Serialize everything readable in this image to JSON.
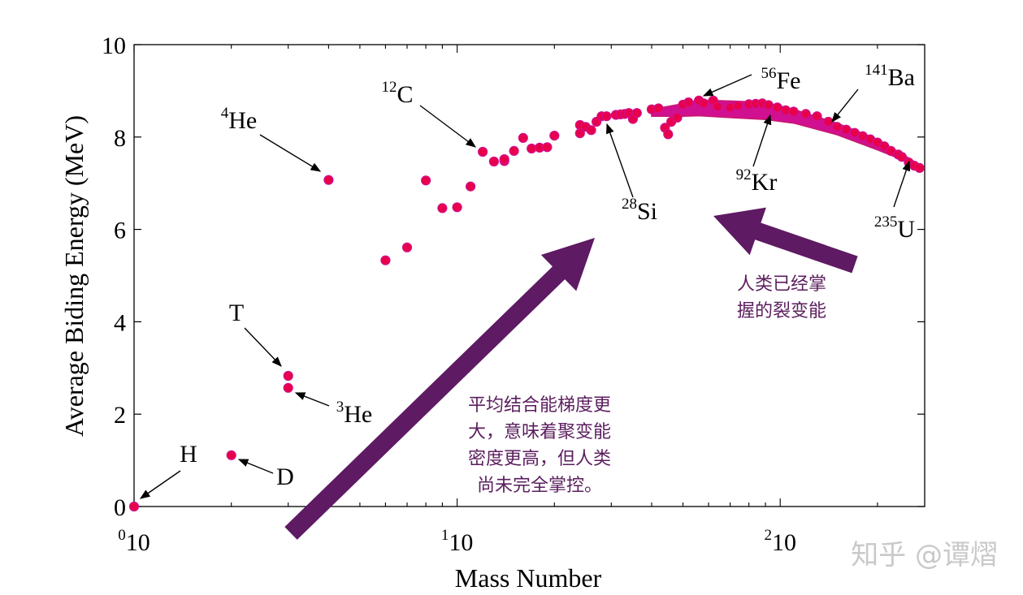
{
  "chart_data": {
    "type": "scatter",
    "xlabel": "Mass Number",
    "ylabel": "Average Biding Energy (MeV)",
    "xscale": "log",
    "xlim": [
      1,
      280
    ],
    "ylim": [
      0,
      10
    ],
    "grid": false,
    "x_ticks": [
      {
        "value": 1,
        "base": "10",
        "exp": "0"
      },
      {
        "value": 10,
        "base": "10",
        "exp": "1"
      },
      {
        "value": 100,
        "base": "10",
        "exp": "2"
      }
    ],
    "y_ticks": [
      "0",
      "2",
      "4",
      "6",
      "8",
      "10"
    ],
    "marker_color": "#e8004a",
    "marker_edge": "#d01090",
    "points": [
      {
        "x": 1,
        "y": 0
      },
      {
        "x": 2,
        "y": 1.11
      },
      {
        "x": 3,
        "y": 2.83
      },
      {
        "x": 3,
        "y": 2.57
      },
      {
        "x": 4,
        "y": 7.07
      },
      {
        "x": 6,
        "y": 5.33
      },
      {
        "x": 7,
        "y": 5.61
      },
      {
        "x": 8,
        "y": 7.06
      },
      {
        "x": 9,
        "y": 6.46
      },
      {
        "x": 10,
        "y": 6.48
      },
      {
        "x": 11,
        "y": 6.93
      },
      {
        "x": 12,
        "y": 7.68
      },
      {
        "x": 13,
        "y": 7.47
      },
      {
        "x": 14,
        "y": 7.48
      },
      {
        "x": 14,
        "y": 7.52
      },
      {
        "x": 15,
        "y": 7.7
      },
      {
        "x": 16,
        "y": 7.98
      },
      {
        "x": 17,
        "y": 7.75
      },
      {
        "x": 18,
        "y": 7.77
      },
      {
        "x": 19,
        "y": 7.78
      },
      {
        "x": 20,
        "y": 8.03
      },
      {
        "x": 24,
        "y": 8.26
      },
      {
        "x": 24,
        "y": 8.08
      },
      {
        "x": 25,
        "y": 8.22
      },
      {
        "x": 26,
        "y": 8.15
      },
      {
        "x": 27,
        "y": 8.33
      },
      {
        "x": 28,
        "y": 8.45
      },
      {
        "x": 29,
        "y": 8.45
      },
      {
        "x": 31,
        "y": 8.48
      },
      {
        "x": 32,
        "y": 8.49
      },
      {
        "x": 33,
        "y": 8.5
      },
      {
        "x": 34,
        "y": 8.52
      },
      {
        "x": 35,
        "y": 8.39
      },
      {
        "x": 36,
        "y": 8.52
      },
      {
        "x": 40,
        "y": 8.6
      },
      {
        "x": 42,
        "y": 8.62
      },
      {
        "x": 44,
        "y": 8.2
      },
      {
        "x": 45,
        "y": 8.06
      },
      {
        "x": 46,
        "y": 8.33
      },
      {
        "x": 48,
        "y": 8.42
      },
      {
        "x": 50,
        "y": 8.7
      },
      {
        "x": 52,
        "y": 8.75
      },
      {
        "x": 56,
        "y": 8.79
      },
      {
        "x": 58,
        "y": 8.73
      },
      {
        "x": 62,
        "y": 8.79
      },
      {
        "x": 64,
        "y": 8.66
      },
      {
        "x": 70,
        "y": 8.64
      },
      {
        "x": 74,
        "y": 8.68
      },
      {
        "x": 80,
        "y": 8.71
      },
      {
        "x": 84,
        "y": 8.72
      },
      {
        "x": 88,
        "y": 8.73
      },
      {
        "x": 92,
        "y": 8.69
      },
      {
        "x": 98,
        "y": 8.64
      },
      {
        "x": 104,
        "y": 8.58
      },
      {
        "x": 110,
        "y": 8.55
      },
      {
        "x": 120,
        "y": 8.5
      },
      {
        "x": 130,
        "y": 8.45
      },
      {
        "x": 141,
        "y": 8.33
      },
      {
        "x": 150,
        "y": 8.22
      },
      {
        "x": 160,
        "y": 8.16
      },
      {
        "x": 170,
        "y": 8.09
      },
      {
        "x": 180,
        "y": 8.02
      },
      {
        "x": 190,
        "y": 7.95
      },
      {
        "x": 200,
        "y": 7.88
      },
      {
        "x": 210,
        "y": 7.8
      },
      {
        "x": 220,
        "y": 7.7
      },
      {
        "x": 232,
        "y": 7.62
      },
      {
        "x": 238,
        "y": 7.57
      },
      {
        "x": 250,
        "y": 7.45
      },
      {
        "x": 260,
        "y": 7.38
      },
      {
        "x": 270,
        "y": 7.33
      }
    ],
    "upper_band": [
      [
        40,
        8.6
      ],
      [
        50,
        8.72
      ],
      [
        56,
        8.8
      ],
      [
        70,
        8.78
      ],
      [
        90,
        8.75
      ],
      [
        110,
        8.6
      ],
      [
        150,
        8.3
      ],
      [
        200,
        7.95
      ],
      [
        240,
        7.62
      ],
      [
        270,
        7.4
      ]
    ],
    "lower_band": [
      [
        270,
        7.3
      ],
      [
        240,
        7.5
      ],
      [
        200,
        7.72
      ],
      [
        150,
        8.05
      ],
      [
        110,
        8.3
      ],
      [
        90,
        8.38
      ],
      [
        70,
        8.42
      ],
      [
        56,
        8.46
      ],
      [
        50,
        8.45
      ],
      [
        40,
        8.45
      ]
    ],
    "annotations": [
      {
        "sup": "",
        "text": "H",
        "x": 1,
        "y": 0
      },
      {
        "sup": "",
        "text": "D",
        "x": 2,
        "y": 1.11
      },
      {
        "sup": "",
        "text": "T",
        "x": 3,
        "y": 2.83
      },
      {
        "sup": "3",
        "text": "He",
        "x": 3,
        "y": 2.57
      },
      {
        "sup": "4",
        "text": "He",
        "x": 4,
        "y": 7.07
      },
      {
        "sup": "12",
        "text": "C",
        "x": 12,
        "y": 7.68
      },
      {
        "sup": "28",
        "text": "Si",
        "x": 28,
        "y": 8.45
      },
      {
        "sup": "56",
        "text": "Fe",
        "x": 56,
        "y": 8.79
      },
      {
        "sup": "92",
        "text": "Kr",
        "x": 92,
        "y": 8.69
      },
      {
        "sup": "141",
        "text": "Ba",
        "x": 141,
        "y": 8.33
      },
      {
        "sup": "235",
        "text": "U",
        "x": 270,
        "y": 7.33
      }
    ],
    "notes": [
      {
        "lines": [
          "平均结合能梯度更",
          "大，意味着聚变能",
          "密度更高，但人类",
          "尚未完全掌控。"
        ]
      },
      {
        "lines": [
          "人类已经掌",
          "握的裂变能"
        ]
      }
    ],
    "note_color": "#5b1e5e",
    "arrow_color": "#5e1a63"
  },
  "watermark": "知乎 @谭熠"
}
